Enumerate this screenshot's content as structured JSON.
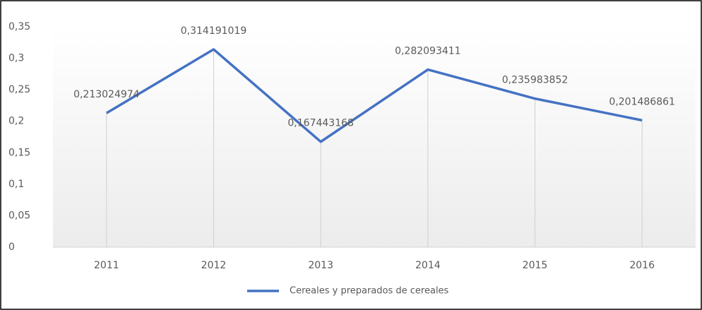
{
  "chart_data": {
    "type": "line",
    "categories": [
      "2011",
      "2012",
      "2013",
      "2014",
      "2015",
      "2016"
    ],
    "series": [
      {
        "name": "Cereales y preparados de cereales",
        "color": "#4472c4",
        "values": [
          0.213024974,
          0.314191019,
          0.167443168,
          0.282093411,
          0.235983852,
          0.201486861
        ],
        "value_labels": [
          "0,213024974",
          "0,314191019",
          "0,167443168",
          "0,282093411",
          "0,235983852",
          "0,201486861"
        ]
      }
    ],
    "ylim": [
      0,
      0.35
    ],
    "yticks": [
      0,
      {
        "value": 0.05,
        "label": "0,05"
      },
      {
        "value": 0.1,
        "label": "0,1"
      },
      {
        "value": 0.15,
        "label": "0,15"
      },
      {
        "value": 0.2,
        "label": "0,2"
      },
      {
        "value": 0.25,
        "label": "0,25"
      },
      {
        "value": 0.3,
        "label": "0,3"
      },
      {
        "value": 0.35,
        "label": "0,35"
      }
    ],
    "drop_lines": true,
    "legend": "bottom"
  }
}
